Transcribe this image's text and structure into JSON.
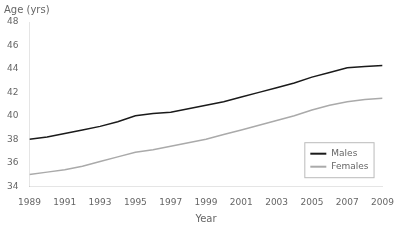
{
  "chart_data": {
    "type": "line",
    "x": [
      1989,
      1990,
      1991,
      1992,
      1993,
      1994,
      1995,
      1996,
      1997,
      1998,
      1999,
      2000,
      2001,
      2002,
      2003,
      2004,
      2005,
      2006,
      2007,
      2008,
      2009
    ],
    "series": [
      {
        "name": "Males",
        "color": "#1a1a1a",
        "values": [
          38.0,
          38.2,
          38.5,
          38.8,
          39.1,
          39.5,
          40.0,
          40.2,
          40.3,
          40.6,
          40.9,
          41.2,
          41.6,
          42.0,
          42.4,
          42.8,
          43.3,
          43.7,
          44.1,
          44.2,
          44.3
        ]
      },
      {
        "name": "Females",
        "color": "#aaaaaa",
        "values": [
          35.0,
          35.2,
          35.4,
          35.7,
          36.1,
          36.5,
          36.9,
          37.1,
          37.4,
          37.7,
          38.0,
          38.4,
          38.8,
          39.2,
          39.6,
          40.0,
          40.5,
          40.9,
          41.2,
          41.4,
          41.5
        ]
      }
    ],
    "xlabel": "Year",
    "ylabel": "Age (yrs)",
    "xlim": [
      1989,
      2009
    ],
    "xticks": [
      1989,
      1991,
      1993,
      1995,
      1997,
      1999,
      2001,
      2003,
      2005,
      2007,
      2009
    ],
    "ylim": [
      34,
      48
    ],
    "yticks": [
      34,
      36,
      38,
      40,
      42,
      44,
      46,
      48
    ],
    "grid": false,
    "legend": "lower right"
  }
}
